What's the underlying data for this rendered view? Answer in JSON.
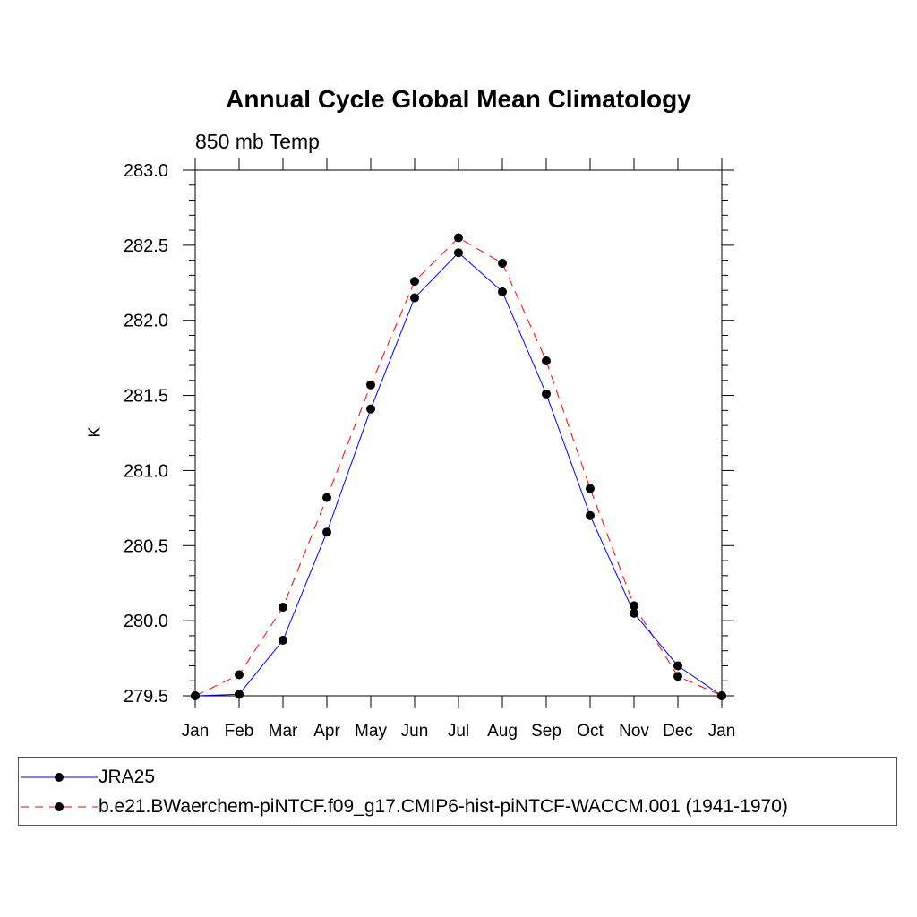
{
  "chart_data": {
    "type": "line",
    "title": "Annual Cycle Global Mean Climatology",
    "subtitle": "850 mb Temp",
    "ylabel": "K",
    "xlabel": "",
    "categories": [
      "Jan",
      "Feb",
      "Mar",
      "Apr",
      "May",
      "Jun",
      "Jul",
      "Aug",
      "Sep",
      "Oct",
      "Nov",
      "Dec",
      "Jan"
    ],
    "ylim": [
      279.5,
      283.0
    ],
    "yticks": [
      "279.5",
      "280.0",
      "280.5",
      "281.0",
      "281.5",
      "282.0",
      "282.5",
      "283.0"
    ],
    "series": [
      {
        "name": "JRA25",
        "color": "#0000ff",
        "style": "solid",
        "values": [
          279.5,
          279.51,
          279.87,
          280.59,
          281.41,
          282.15,
          282.45,
          282.19,
          281.51,
          280.7,
          280.05,
          279.7,
          279.5
        ]
      },
      {
        "name": "b.e21.BWaerchem-piNTCF.f09_g17.CMIP6-hist-piNTCF-WACCM.001 (1941-1970)",
        "color": "#ff0000",
        "style": "dashed",
        "values": [
          279.5,
          279.64,
          280.09,
          280.82,
          281.57,
          282.26,
          282.55,
          282.38,
          281.73,
          280.88,
          280.1,
          279.63,
          279.5
        ]
      }
    ],
    "legend_position": "bottom"
  }
}
